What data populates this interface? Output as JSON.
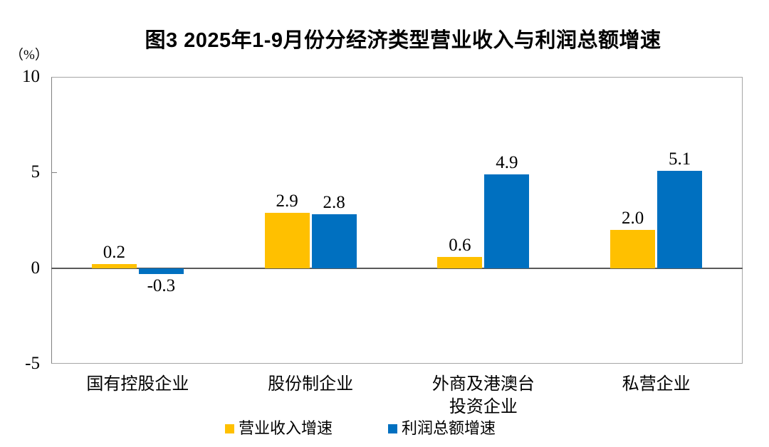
{
  "title": "图3  2025年1-9月份分经济类型营业收入与利润总额增速",
  "unit_label": "（%）",
  "chart_data": {
    "type": "bar",
    "title": "图3  2025年1-9月份分经济类型营业收入与利润总额增速",
    "ylabel": "（%）",
    "categories": [
      "国有控股企业",
      "股份制企业",
      "外商及港澳台\n投资企业",
      "私营企业"
    ],
    "series": [
      {
        "name": "营业收入增速",
        "color": "#FFC000",
        "values": [
          0.2,
          2.9,
          0.6,
          2.0
        ]
      },
      {
        "name": "利润总额增速",
        "color": "#0070C0",
        "values": [
          -0.3,
          2.8,
          4.9,
          5.1
        ]
      }
    ],
    "value_labels": [
      [
        "0.2",
        "2.9",
        "0.6",
        "2.0"
      ],
      [
        "-0.3",
        "2.8",
        "4.9",
        "5.1"
      ]
    ],
    "ylim": [
      -5,
      10
    ],
    "yticks": [
      "10",
      "5",
      "0",
      "-5"
    ],
    "ytick_values": [
      10,
      5,
      0,
      -5
    ],
    "grid": "off",
    "legend_position": "bottom"
  }
}
